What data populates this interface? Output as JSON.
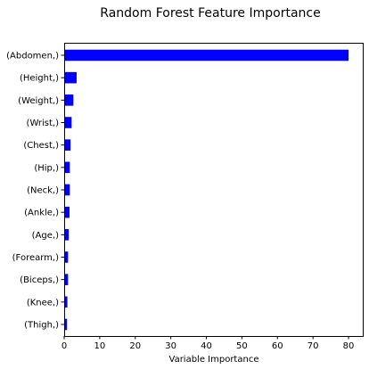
{
  "chart_data": {
    "type": "bar",
    "orientation": "horizontal",
    "title": "Random Forest Feature Importance",
    "xlabel": "Variable Importance",
    "ylabel": "",
    "xlim": [
      0,
      84
    ],
    "xticks": [
      0,
      10,
      20,
      30,
      40,
      50,
      60,
      70,
      80
    ],
    "grid": false,
    "legend": "none",
    "bar_color": "#0000ff",
    "categories": [
      "(Abdomen,)",
      "(Height,)",
      "(Weight,)",
      "(Wrist,)",
      "(Chest,)",
      "(Hip,)",
      "(Neck,)",
      "(Ankle,)",
      "(Age,)",
      "(Forearm,)",
      "(Biceps,)",
      "(Knee,)",
      "(Thigh,)"
    ],
    "values": [
      80.0,
      3.5,
      2.6,
      2.1,
      1.8,
      1.6,
      1.6,
      1.5,
      1.3,
      1.1,
      1.1,
      0.9,
      0.8
    ]
  }
}
